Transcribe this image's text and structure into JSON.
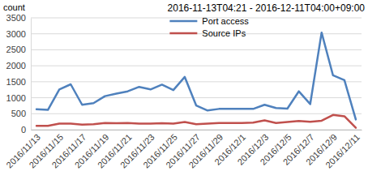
{
  "chart_data": {
    "type": "line",
    "title": "2016-11-13T04:21 - 2016-12-11T04:00+09:00",
    "y_label": "count",
    "categories": [
      "2016/11/13",
      null,
      "2016/11/15",
      null,
      "2016/11/17",
      null,
      "2016/11/19",
      null,
      "2016/11/21",
      null,
      "2016/11/23",
      null,
      "2016/11/25",
      null,
      "2016/11/27",
      null,
      "2016/11/29",
      null,
      "2016/12/1",
      null,
      "2016/12/3",
      null,
      "2016/12/5",
      null,
      "2016/12/7",
      null,
      "2016/12/9",
      null,
      "2016/12/11"
    ],
    "series": [
      {
        "name": "Port access",
        "color": "#4f81bd",
        "values": [
          640,
          620,
          1260,
          1420,
          780,
          830,
          1050,
          1130,
          1200,
          1340,
          1260,
          1410,
          1240,
          1650,
          760,
          600,
          650,
          650,
          650,
          650,
          780,
          680,
          660,
          1200,
          800,
          3040,
          1700,
          1550,
          320
        ]
      },
      {
        "name": "Source IPs",
        "color": "#c0504d",
        "values": [
          120,
          120,
          190,
          190,
          160,
          170,
          210,
          200,
          210,
          190,
          190,
          200,
          190,
          240,
          170,
          190,
          210,
          210,
          210,
          220,
          290,
          210,
          240,
          270,
          250,
          280,
          460,
          420,
          60
        ]
      }
    ],
    "ylim": [
      0,
      3500
    ],
    "yticks": [
      0,
      500,
      1000,
      1500,
      2000,
      2500,
      3000,
      3500
    ],
    "grid": true,
    "legend": "top"
  }
}
